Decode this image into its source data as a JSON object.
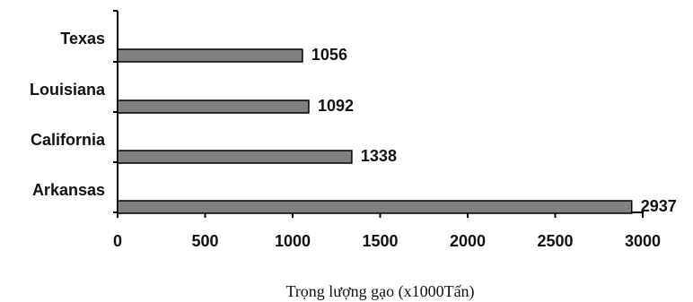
{
  "chart_data": {
    "type": "bar",
    "orientation": "horizontal",
    "title": "",
    "xlabel": "Trọng lượng gạo (x1000Tấn)",
    "ylabel": "",
    "categories": [
      "Texas",
      "Louisiana",
      "California",
      "Arkansas"
    ],
    "values": [
      1056,
      1092,
      1338,
      2937
    ],
    "data_labels": [
      "1056",
      "1092",
      "1338",
      "2937"
    ],
    "xlim": [
      0,
      3000
    ],
    "x_ticks": [
      0,
      500,
      1000,
      1500,
      2000,
      2500,
      3000
    ],
    "x_tick_labels": [
      "0",
      "500",
      "1000",
      "1500",
      "2000",
      "2500",
      "3000"
    ],
    "grid": false,
    "legend": "none",
    "bar_color": "#808080",
    "bar_edge_color": "#000000"
  }
}
